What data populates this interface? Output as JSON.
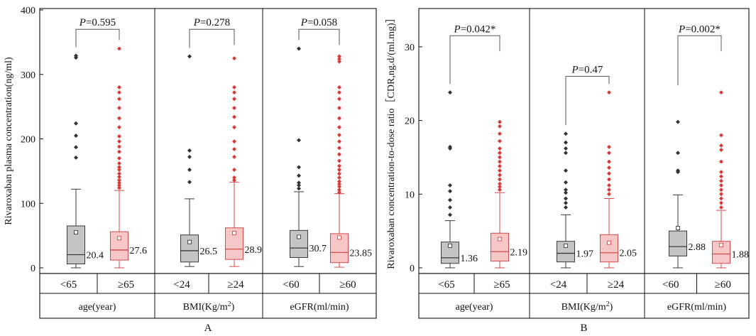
{
  "chart_data": [
    {
      "type": "box",
      "panel_label": "A",
      "ylabel": "Rivaroxaban plasma concentration(ng/ml)",
      "ylim": [
        0,
        400
      ],
      "yticks": [
        0,
        100,
        200,
        300,
        400
      ],
      "groups": [
        {
          "name": "age(year)",
          "sup": "",
          "name_after": "",
          "categories": [
            "<65",
            "≥65"
          ],
          "p_label": "P",
          "p_value": "=0.595",
          "p_y": 370
        },
        {
          "name": "BMI(Kg/m",
          "sup": "2",
          "name_after": ")",
          "categories": [
            "<24",
            "≥24"
          ],
          "p_label": "P",
          "p_value": "=0.278",
          "p_y": 370
        },
        {
          "name": "eGFR(ml/min)",
          "sup": "",
          "name_after": "",
          "categories": [
            "<60",
            "≥60"
          ],
          "p_label": "P",
          "p_value": "=0.058",
          "p_y": 370
        }
      ],
      "boxes": [
        {
          "color": "gray",
          "whisker_low": 0,
          "q1": 6,
          "median": 20.4,
          "q3": 65,
          "whisker_high": 122,
          "mean": 55,
          "median_label": "20.4",
          "outliers": [
            171,
            187,
            205,
            224,
            326,
            329
          ]
        },
        {
          "color": "red",
          "whisker_low": 0,
          "q1": 12,
          "median": 27.6,
          "q3": 56,
          "whisker_high": 120,
          "mean": 46,
          "median_label": "27.6",
          "outliers": [
            124,
            128,
            132,
            136,
            141,
            146,
            152,
            156,
            162,
            170,
            180,
            188,
            196,
            204,
            218,
            232,
            248,
            262,
            272,
            280,
            340
          ]
        },
        {
          "color": "gray",
          "whisker_low": 2,
          "q1": 9,
          "median": 26.5,
          "q3": 51,
          "whisker_high": 107,
          "mean": 40,
          "median_label": "26.5",
          "outliers": [
            133,
            152,
            172,
            182,
            328
          ]
        },
        {
          "color": "red",
          "whisker_low": 2,
          "q1": 13,
          "median": 28.9,
          "q3": 62,
          "whisker_high": 133,
          "mean": 54,
          "median_label": "28.9",
          "outliers": [
            136,
            140,
            152,
            172,
            184,
            196,
            218,
            234,
            248,
            262,
            272,
            280,
            325
          ]
        },
        {
          "color": "gray",
          "whisker_low": 2,
          "q1": 16,
          "median": 30.7,
          "q3": 58,
          "whisker_high": 118,
          "mean": 48,
          "median_label": "30.7",
          "outliers": [
            123,
            128,
            132,
            143,
            156,
            198,
            340
          ]
        },
        {
          "color": "red",
          "whisker_low": 1,
          "q1": 8,
          "median": 23.85,
          "q3": 53,
          "whisker_high": 115,
          "mean": 47,
          "median_label": "23.85",
          "outliers": [
            117,
            121,
            126,
            130,
            134,
            140,
            146,
            152,
            158,
            166,
            176,
            186,
            196,
            206,
            218,
            232,
            248,
            262,
            272,
            280,
            320,
            324,
            328
          ]
        }
      ]
    },
    {
      "type": "box",
      "panel_label": "B",
      "ylabel": "Rivaroxaban concentration-to-dose ratio［CDR,ng.d/(ml.mg)］",
      "ylim": [
        0,
        35
      ],
      "yticks": [
        0,
        10,
        20,
        30
      ],
      "groups": [
        {
          "name": "age(year)",
          "sup": "",
          "name_after": "",
          "categories": [
            "<65",
            "≥65"
          ],
          "p_label": "P",
          "p_value": "=0.042*",
          "p_y": 31.5
        },
        {
          "name": "BMI(Kg/m",
          "sup": "2",
          "name_after": ")",
          "categories": [
            "<24",
            "≥24"
          ],
          "p_label": "P",
          "p_value": "=0.47",
          "p_y": 26.0
        },
        {
          "name": "eGFR(ml/min)",
          "sup": "",
          "name_after": "",
          "categories": [
            "<60",
            "≥60"
          ],
          "p_label": "P",
          "p_value": "=0.002*",
          "p_y": 31.5
        }
      ],
      "boxes": [
        {
          "color": "gray",
          "whisker_low": 0,
          "q1": 0.6,
          "median": 1.36,
          "q3": 3.5,
          "whisker_high": 6.4,
          "mean": 3.0,
          "median_label": "1.36",
          "outliers": [
            7.2,
            8.2,
            9.2,
            10.4,
            11.2,
            16.2,
            16.4,
            23.8
          ]
        },
        {
          "color": "red",
          "whisker_low": 0,
          "q1": 0.9,
          "median": 2.19,
          "q3": 4.7,
          "whisker_high": 10.2,
          "mean": 3.9,
          "median_label": "2.19",
          "outliers": [
            10.6,
            11.0,
            11.4,
            12.0,
            12.6,
            13.2,
            13.8,
            14.4,
            15.0,
            15.6,
            16.2,
            17.2,
            18.2,
            19.2,
            19.8
          ]
        },
        {
          "color": "gray",
          "whisker_low": 0,
          "q1": 0.8,
          "median": 1.97,
          "q3": 3.6,
          "whisker_high": 7.2,
          "mean": 3.0,
          "median_label": "1.97",
          "outliers": [
            8.2,
            8.8,
            9.4,
            10.2,
            10.6,
            11.6,
            13.2,
            15.6,
            16.2,
            17.0,
            18.2
          ]
        },
        {
          "color": "red",
          "whisker_low": 0,
          "q1": 0.8,
          "median": 2.05,
          "q3": 4.5,
          "whisker_high": 9.4,
          "mean": 3.4,
          "median_label": "2.05",
          "outliers": [
            10.0,
            10.6,
            11.2,
            12.0,
            12.8,
            13.6,
            14.4,
            15.6,
            16.4,
            23.8
          ]
        },
        {
          "color": "gray",
          "whisker_low": 0,
          "q1": 1.6,
          "median": 2.88,
          "q3": 5.0,
          "whisker_high": 9.9,
          "mean": 5.4,
          "median_label": "2.88",
          "outliers": [
            13.0,
            13.2,
            15.6,
            19.8
          ]
        },
        {
          "color": "red",
          "whisker_low": 0,
          "q1": 0.6,
          "median": 1.88,
          "q3": 3.6,
          "whisker_high": 7.8,
          "mean": 3.1,
          "median_label": "1.88",
          "outliers": [
            8.2,
            8.8,
            9.4,
            10.0,
            10.6,
            11.2,
            11.8,
            12.4,
            13.0,
            14.4,
            16.0,
            16.6,
            18.0,
            23.8
          ]
        }
      ]
    }
  ]
}
